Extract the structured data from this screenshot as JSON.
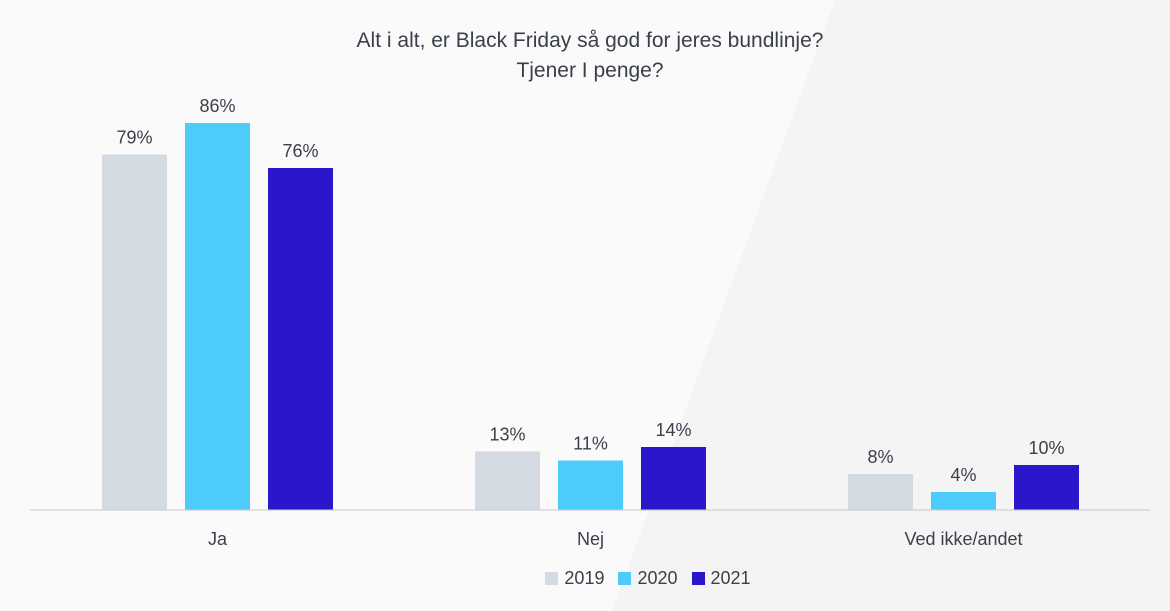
{
  "chart_data": {
    "type": "bar",
    "title": "Alt i alt, er Black Friday så god for jeres bundlinje?",
    "subtitle": "Tjener I penge?",
    "categories": [
      "Ja",
      "Nej",
      "Ved ikke/andet"
    ],
    "series": [
      {
        "name": "2019",
        "values": [
          79,
          13,
          8
        ],
        "labels": [
          "79%",
          "13%",
          "8%"
        ],
        "color": "#d3dae2"
      },
      {
        "name": "2020",
        "values": [
          86,
          11,
          4
        ],
        "labels": [
          "86%",
          "11%",
          "4%"
        ],
        "color": "#4dcbfa"
      },
      {
        "name": "2021",
        "values": [
          76,
          14,
          10
        ],
        "labels": [
          "76%",
          "14%",
          "10%"
        ],
        "color": "#2a17cc"
      }
    ],
    "ylim": [
      0,
      86
    ],
    "grid": false,
    "legend_position": "bottom"
  }
}
